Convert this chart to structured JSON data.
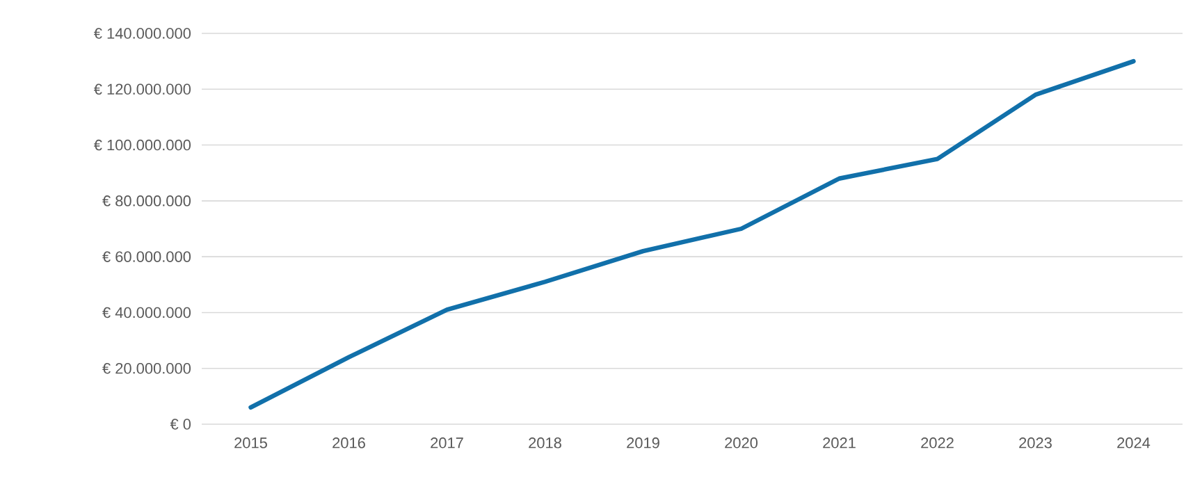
{
  "chart_data": {
    "type": "line",
    "categories": [
      "2015",
      "2016",
      "2017",
      "2018",
      "2019",
      "2020",
      "2021",
      "2022",
      "2023",
      "2024"
    ],
    "series": [
      {
        "color": "#1170aa",
        "values": [
          6000000,
          24000000,
          41000000,
          51000000,
          62000000,
          70000000,
          88000000,
          95000000,
          118000000,
          130000000
        ]
      }
    ],
    "ylim": [
      0,
      140000000
    ],
    "yticks": [
      {
        "value": 0,
        "label": "€ 0"
      },
      {
        "value": 20000000,
        "label": "€ 20.000.000"
      },
      {
        "value": 40000000,
        "label": "€ 40.000.000"
      },
      {
        "value": 60000000,
        "label": "€ 60.000.000"
      },
      {
        "value": 80000000,
        "label": "€ 80.000.000"
      },
      {
        "value": 100000000,
        "label": "€ 100.000.000"
      },
      {
        "value": 120000000,
        "label": "€ 120.000.000"
      },
      {
        "value": 140000000,
        "label": "€ 140.000.000"
      }
    ],
    "grid": "y",
    "marker": "none",
    "line_style": "solid"
  }
}
